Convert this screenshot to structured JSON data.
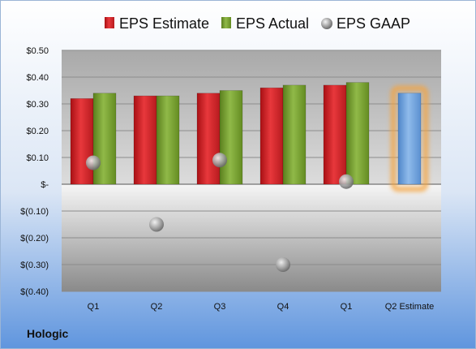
{
  "company": "Hologic",
  "colors": {
    "estimate": "#d9262b",
    "actual": "#77a12e",
    "gaap": "#b8b8b8",
    "q2_estimate": "#6fa2dd",
    "highlight": "#f5a440"
  },
  "chart_data": {
    "type": "bar",
    "categories": [
      "Q1",
      "Q2",
      "Q3",
      "Q4",
      "Q1",
      "Q2 Estimate"
    ],
    "series": [
      {
        "name": "EPS Estimate",
        "values": [
          0.32,
          0.33,
          0.34,
          0.36,
          0.37,
          null
        ]
      },
      {
        "name": "EPS Actual",
        "values": [
          0.34,
          0.33,
          0.35,
          0.37,
          0.38,
          0.34
        ]
      },
      {
        "name": "EPS GAAP",
        "values": [
          0.08,
          -0.15,
          0.09,
          -0.3,
          0.01,
          null
        ]
      }
    ],
    "ylim": [
      -0.4,
      0.5
    ],
    "yticks": [
      {
        "value": 0.5,
        "label": "$0.50"
      },
      {
        "value": 0.4,
        "label": "$0.40"
      },
      {
        "value": 0.3,
        "label": "$0.30"
      },
      {
        "value": 0.2,
        "label": "$0.20"
      },
      {
        "value": 0.1,
        "label": "$0.10"
      },
      {
        "value": 0.0,
        "label": "$-"
      },
      {
        "value": -0.1,
        "label": "$(0.10)"
      },
      {
        "value": -0.2,
        "label": "$(0.20)"
      },
      {
        "value": -0.3,
        "label": "$(0.30)"
      },
      {
        "value": -0.4,
        "label": "$(0.40)"
      }
    ],
    "legend_position": "top",
    "grid": true
  }
}
